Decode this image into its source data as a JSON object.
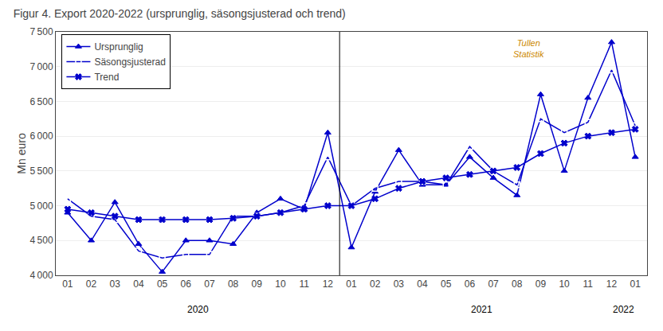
{
  "chart_data": {
    "type": "line",
    "title": "Figur 4. Export 2020-2022 (ursprunglig, säsongsjusterad och trend)",
    "y_label": "Mn euro",
    "categories": [
      "01",
      "02",
      "03",
      "04",
      "05",
      "06",
      "07",
      "08",
      "09",
      "10",
      "11",
      "12",
      "01",
      "02",
      "03",
      "04",
      "05",
      "06",
      "07",
      "08",
      "09",
      "10",
      "11",
      "12",
      "01"
    ],
    "series": [
      {
        "name": "Ursprunglig",
        "color": "#0000CC",
        "marker": "triangle-up",
        "line_style": "solid",
        "values": [
          4900,
          4500,
          5050,
          4450,
          4050,
          4500,
          4500,
          4450,
          4900,
          5100,
          4950,
          6050,
          4400,
          5200,
          5800,
          5300,
          5300,
          5700,
          5400,
          5150,
          6600,
          5500,
          6550,
          7350,
          5700
        ]
      },
      {
        "name": "Säsongsjusterad",
        "color": "#0000CC",
        "marker": "square-open",
        "line_style": "solid",
        "values": [
          5100,
          4850,
          4800,
          4350,
          4250,
          4300,
          4300,
          4850,
          4850,
          4900,
          5000,
          5700,
          5000,
          5250,
          5350,
          5350,
          5300,
          5850,
          5500,
          5300,
          6250,
          6050,
          6200,
          6950,
          6150
        ]
      },
      {
        "name": "Trend",
        "color": "#0000CC",
        "marker": "x",
        "line_style": "solid",
        "values": [
          4950,
          4900,
          4850,
          4800,
          4800,
          4800,
          4800,
          4820,
          4850,
          4900,
          4950,
          5000,
          5000,
          5100,
          5250,
          5350,
          5400,
          5450,
          5500,
          5550,
          5750,
          5900,
          6000,
          6050,
          6100
        ]
      }
    ],
    "ylim": [
      4000,
      7500
    ],
    "yticks": [
      {
        "value": 4000,
        "label": "4 000"
      },
      {
        "value": 4500,
        "label": "4 500"
      },
      {
        "value": 5000,
        "label": "5 000"
      },
      {
        "value": 5500,
        "label": "5 500"
      },
      {
        "value": 6000,
        "label": "6 000"
      },
      {
        "value": 6500,
        "label": "6 500"
      },
      {
        "value": 7000,
        "label": "7 000"
      },
      {
        "value": 7500,
        "label": "7 500"
      }
    ],
    "annotations": [
      {
        "text": "2020",
        "x": 6
      },
      {
        "text": "2021",
        "x": 18
      },
      {
        "text": "2022",
        "x": 24
      },
      {
        "text": "Tullen\nStatistik"
      }
    ],
    "dividers": [
      12
    ],
    "grid": true,
    "legend": "upper left"
  }
}
